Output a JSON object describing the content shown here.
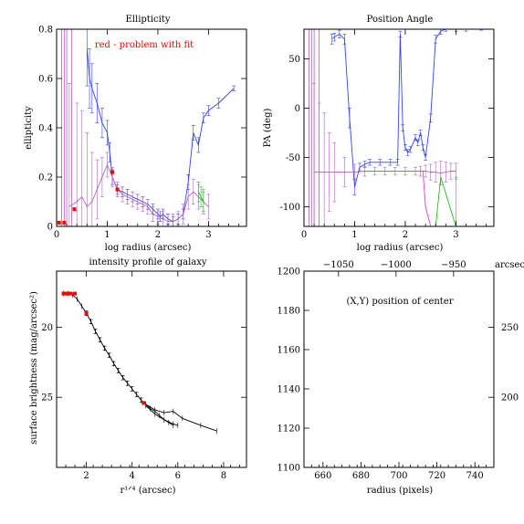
{
  "colors": {
    "blue": "#3344ee",
    "purple": "#b060c0",
    "magenta": "#e040e0",
    "green": "#22bb22",
    "red": "#ff0000",
    "black": "#000000"
  },
  "chart_data": [
    {
      "id": "ellipticity",
      "type": "line",
      "title": "Ellipticity",
      "xlabel": "log radius (arcsec)",
      "ylabel": "ellipticity",
      "xlim": [
        0,
        3.75
      ],
      "ylim": [
        0,
        0.8
      ],
      "xticks": [
        0,
        1,
        2,
        3
      ],
      "yticks": [
        0,
        0.2,
        0.4,
        0.6,
        0.8
      ],
      "yticklabels": [
        "0",
        "0.2",
        "0.4",
        "0.6",
        "0.8"
      ],
      "annotation": "red - problem with fit",
      "series": [
        {
          "color": "blue",
          "x": [
            0.6,
            0.65,
            0.7,
            0.8,
            0.9,
            1.0,
            1.05,
            1.1,
            1.2,
            1.3,
            1.4,
            1.5,
            1.6,
            1.7,
            1.8,
            1.9,
            2.0,
            2.05,
            2.1,
            2.2,
            2.3,
            2.4,
            2.5,
            2.6,
            2.7,
            2.8,
            2.9,
            3.0,
            3.2,
            3.5
          ],
          "y": [
            0.72,
            0.6,
            0.56,
            0.5,
            0.42,
            0.38,
            0.3,
            0.2,
            0.15,
            0.14,
            0.13,
            0.12,
            0.11,
            0.1,
            0.09,
            0.07,
            0.05,
            0.04,
            0.05,
            0.03,
            0.02,
            0.03,
            0.05,
            0.18,
            0.38,
            0.33,
            0.44,
            0.47,
            0.5,
            0.56
          ],
          "err": [
            0.15,
            0.12,
            0.1,
            0.08,
            0.06,
            0.05,
            0.04,
            0.03,
            0.02,
            0.02,
            0.02,
            0.02,
            0.02,
            0.02,
            0.02,
            0.02,
            0.02,
            0.02,
            0.02,
            0.02,
            0.02,
            0.02,
            0.02,
            0.03,
            0.03,
            0.03,
            0.02,
            0.02,
            0.02,
            0.01
          ]
        },
        {
          "color": "purple",
          "x": [
            0.25,
            0.4,
            0.5,
            0.6,
            0.7,
            0.8,
            0.9,
            1.0,
            1.1,
            1.2,
            1.3,
            1.4,
            1.5,
            1.6,
            1.7,
            1.8,
            1.9,
            2.0,
            2.1,
            2.2,
            2.3,
            2.4,
            2.5,
            2.6,
            2.7,
            2.8,
            2.9,
            3.0
          ],
          "y": [
            0.08,
            0.1,
            0.12,
            0.08,
            0.1,
            0.15,
            0.2,
            0.25,
            0.2,
            0.15,
            0.13,
            0.12,
            0.11,
            0.1,
            0.09,
            0.08,
            0.05,
            0.04,
            0.03,
            0.02,
            0.02,
            0.03,
            0.05,
            0.12,
            0.14,
            0.12,
            0.1,
            0.08
          ],
          "err": [
            0.5,
            0.4,
            0.35,
            0.3,
            0.2,
            0.12,
            0.08,
            0.05,
            0.04,
            0.03,
            0.03,
            0.03,
            0.03,
            0.03,
            0.03,
            0.03,
            0.03,
            0.03,
            0.03,
            0.03,
            0.03,
            0.03,
            0.04,
            0.05,
            0.05,
            0.05,
            0.05,
            0.05
          ]
        },
        {
          "color": "green",
          "x": [
            2.8,
            2.85,
            2.9
          ],
          "y": [
            0.14,
            0.12,
            0.1
          ],
          "err": [
            0.04,
            0.04,
            0.04
          ]
        }
      ],
      "problem_points": {
        "x": [
          0.05,
          0.15,
          0.35,
          1.1,
          1.2
        ],
        "y": [
          0.015,
          0.015,
          0.07,
          0.22,
          0.15
        ]
      },
      "steep_error_bars": [
        0.1,
        0.15,
        0.2,
        0.3
      ]
    },
    {
      "id": "position-angle",
      "type": "line",
      "title": "Position Angle",
      "xlabel": "log radius (arcsec)",
      "ylabel": "PA (deg)",
      "xlim": [
        0,
        3.75
      ],
      "ylim": [
        -120,
        80
      ],
      "xticks": [
        0,
        1,
        2,
        3
      ],
      "yticks": [
        -100,
        -50,
        0,
        50
      ],
      "yticklabels": [
        "-100",
        "-50",
        "0",
        "50"
      ],
      "series": [
        {
          "color": "blue",
          "x": [
            0.55,
            0.6,
            0.7,
            0.8,
            0.9,
            1.0,
            1.1,
            1.2,
            1.3,
            1.5,
            1.7,
            1.85,
            1.9,
            1.95,
            2.0,
            2.05,
            2.1,
            2.2,
            2.25,
            2.3,
            2.35,
            2.4,
            2.5,
            2.6,
            2.7,
            2.8,
            3.0,
            3.2,
            3.5
          ],
          "y": [
            70,
            72,
            75,
            70,
            -10,
            -80,
            -60,
            -57,
            -55,
            -55,
            -55,
            -55,
            75,
            -20,
            -40,
            -45,
            -42,
            -30,
            -35,
            -25,
            -40,
            -50,
            -10,
            70,
            78,
            80,
            80,
            80,
            80
          ],
          "err": [
            5,
            4,
            4,
            5,
            10,
            8,
            4,
            3,
            3,
            3,
            3,
            3,
            3,
            3,
            3,
            3,
            3,
            3,
            3,
            3,
            3,
            3,
            4,
            4,
            3,
            2,
            2,
            2,
            1
          ]
        },
        {
          "color": "purple",
          "x": [
            0.2,
            0.3,
            0.4,
            0.5,
            0.6,
            0.8,
            1.0,
            1.2,
            1.4,
            1.6,
            1.8,
            2.0,
            2.2,
            2.3,
            2.4,
            2.5,
            2.6,
            2.7,
            2.8,
            2.9,
            3.0
          ],
          "y": [
            -65,
            -65,
            -65,
            -65,
            -65,
            -65,
            -65,
            -64,
            -64,
            -64,
            -64,
            -64,
            -64,
            -64,
            -64,
            -65,
            -65,
            -66,
            -65,
            -64,
            -64
          ],
          "err": [
            90,
            70,
            60,
            40,
            30,
            15,
            8,
            5,
            4,
            4,
            4,
            4,
            4,
            5,
            6,
            8,
            10,
            12,
            10,
            8,
            8
          ]
        },
        {
          "color": "magenta",
          "x": [
            2.35,
            2.4,
            2.5,
            2.6
          ],
          "y": [
            -64,
            -100,
            -120,
            -120
          ],
          "err": [
            0,
            0,
            0,
            0
          ]
        },
        {
          "color": "green",
          "x": [
            2.6,
            2.7,
            3.0
          ],
          "y": [
            -120,
            -70,
            -120
          ],
          "err": [
            0,
            0,
            50
          ]
        }
      ],
      "steep_error_bars": [
        0.1,
        0.15,
        0.2,
        0.3
      ]
    },
    {
      "id": "intensity-profile",
      "type": "line",
      "title": "intensity profile of galaxy",
      "xlabel": "r¹ᐟ⁴ (arcsec)",
      "ylabel": "surface brightness (mag/arcsec²)",
      "xlim": [
        0.7,
        9
      ],
      "ylim": [
        30,
        16
      ],
      "xticks": [
        2,
        4,
        6,
        8
      ],
      "yticks": [
        20,
        25
      ],
      "yticklabels": [
        "20",
        "25"
      ],
      "series": [
        {
          "color": "black",
          "x": [
            1.0,
            1.2,
            1.4,
            1.6,
            1.8,
            2.0,
            2.2,
            2.4,
            2.6,
            2.8,
            3.0,
            3.2,
            3.4,
            3.6,
            3.8,
            4.0,
            4.2,
            4.4,
            4.6,
            4.8,
            5.0,
            5.2,
            5.4,
            5.6,
            5.8
          ],
          "y": [
            17.6,
            17.6,
            17.7,
            18.0,
            18.5,
            19.0,
            19.6,
            20.3,
            20.9,
            21.5,
            22.0,
            22.6,
            23.1,
            23.6,
            24.0,
            24.4,
            24.8,
            25.2,
            25.5,
            25.8,
            26.0,
            26.3,
            26.6,
            26.8,
            27.0
          ],
          "err": [
            0,
            0,
            0,
            0,
            0,
            0.15,
            0.15,
            0.15,
            0.15,
            0.15,
            0.15,
            0.15,
            0.15,
            0.15,
            0.15,
            0.15,
            0.15,
            0.15,
            0,
            0,
            0,
            0,
            0,
            0,
            0
          ]
        },
        {
          "color": "black",
          "x": [
            4.6,
            5.0,
            5.4,
            5.8,
            6.2,
            7.0,
            7.7
          ],
          "y": [
            25.5,
            25.9,
            26.1,
            26.0,
            26.5,
            27.0,
            27.4
          ]
        },
        {
          "color": "black",
          "x": [
            4.6,
            5.0,
            5.4,
            5.8,
            6.0
          ],
          "y": [
            25.6,
            26.2,
            26.6,
            26.9,
            27.0
          ]
        }
      ],
      "problem_points": {
        "x": [
          1.0,
          1.1,
          1.2,
          1.3,
          1.5,
          2.0,
          4.5
        ],
        "y": [
          17.6,
          17.6,
          17.6,
          17.6,
          17.6,
          19.0,
          25.4
        ]
      }
    },
    {
      "id": "center-position",
      "type": "scatter",
      "title": "",
      "annotation": "(X,Y) position of center",
      "xlabel": "radius (pixels)",
      "ylabel": "",
      "xlim": [
        650,
        750
      ],
      "ylim": [
        1100,
        1200
      ],
      "xticks": [
        660,
        680,
        700,
        720,
        740
      ],
      "yticks": [
        1100,
        1120,
        1140,
        1160,
        1180,
        1200
      ],
      "yticklabels": [
        "1100",
        "1120",
        "1140",
        "1160",
        "1180",
        "1200"
      ],
      "top_axis": {
        "ticks": [
          -1050,
          -1000,
          -950
        ],
        "labels": [
          "−1050",
          "−1000",
          "−950"
        ],
        "range": [
          -1080,
          -915
        ]
      },
      "right_axis": {
        "label": "arcsec",
        "ticks": [
          250,
          200
        ],
        "labels": [
          "250",
          "200"
        ],
        "range": [
          150,
          290
        ]
      }
    }
  ]
}
